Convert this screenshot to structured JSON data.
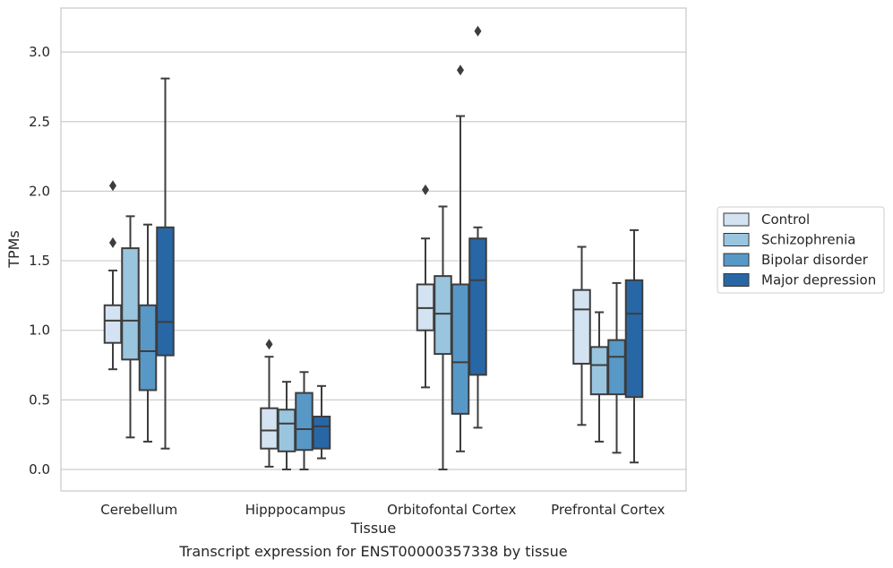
{
  "caption": "Transcript expression for ENST00000357338 by tissue",
  "chart_data": {
    "type": "box",
    "xlabel": "Tissue",
    "ylabel": "TPMs",
    "ylim": [
      -0.15,
      3.3
    ],
    "yticks": [
      0.0,
      0.5,
      1.0,
      1.5,
      2.0,
      2.5,
      3.0
    ],
    "ytick_labels": [
      "0.0",
      "0.5",
      "1.0",
      "1.5",
      "2.0",
      "2.5",
      "3.0"
    ],
    "grid": "horizontal",
    "legend_position": "right",
    "categories": [
      "Cerebellum",
      "Hipppocampus",
      "Orbitofontal Cortex",
      "Prefrontal Cortex"
    ],
    "series": [
      {
        "name": "Control",
        "color": "#d4e3f1",
        "boxes": [
          {
            "whislo": 0.72,
            "q1": 0.91,
            "median": 1.07,
            "q3": 1.18,
            "whishi": 1.43,
            "fliers": [
              1.63,
              2.04
            ]
          },
          {
            "whislo": 0.02,
            "q1": 0.15,
            "median": 0.28,
            "q3": 0.44,
            "whishi": 0.81,
            "fliers": [
              0.9
            ]
          },
          {
            "whislo": 0.59,
            "q1": 1.0,
            "median": 1.16,
            "q3": 1.33,
            "whishi": 1.66,
            "fliers": [
              2.01
            ]
          },
          {
            "whislo": 0.32,
            "q1": 0.76,
            "median": 1.15,
            "q3": 1.29,
            "whishi": 1.6,
            "fliers": []
          }
        ]
      },
      {
        "name": "Schizophrenia",
        "color": "#9ac5df",
        "boxes": [
          {
            "whislo": 0.23,
            "q1": 0.79,
            "median": 1.07,
            "q3": 1.59,
            "whishi": 1.82,
            "fliers": []
          },
          {
            "whislo": 0.0,
            "q1": 0.13,
            "median": 0.33,
            "q3": 0.43,
            "whishi": 0.63,
            "fliers": []
          },
          {
            "whislo": 0.0,
            "q1": 0.83,
            "median": 1.12,
            "q3": 1.39,
            "whishi": 1.89,
            "fliers": []
          },
          {
            "whislo": 0.2,
            "q1": 0.54,
            "median": 0.75,
            "q3": 0.88,
            "whishi": 1.13,
            "fliers": []
          }
        ]
      },
      {
        "name": "Bipolar disorder",
        "color": "#5898c7",
        "boxes": [
          {
            "whislo": 0.2,
            "q1": 0.57,
            "median": 0.85,
            "q3": 1.18,
            "whishi": 1.76,
            "fliers": []
          },
          {
            "whislo": 0.0,
            "q1": 0.14,
            "median": 0.29,
            "q3": 0.55,
            "whishi": 0.7,
            "fliers": []
          },
          {
            "whislo": 0.13,
            "q1": 0.4,
            "median": 0.77,
            "q3": 1.33,
            "whishi": 2.54,
            "fliers": [
              2.87
            ]
          },
          {
            "whislo": 0.12,
            "q1": 0.54,
            "median": 0.81,
            "q3": 0.93,
            "whishi": 1.34,
            "fliers": []
          }
        ]
      },
      {
        "name": "Major depression",
        "color": "#2867a6",
        "boxes": [
          {
            "whislo": 0.15,
            "q1": 0.82,
            "median": 1.06,
            "q3": 1.74,
            "whishi": 2.81,
            "fliers": []
          },
          {
            "whislo": 0.08,
            "q1": 0.15,
            "median": 0.31,
            "q3": 0.38,
            "whishi": 0.6,
            "fliers": []
          },
          {
            "whislo": 0.3,
            "q1": 0.68,
            "median": 1.36,
            "q3": 1.66,
            "whishi": 1.74,
            "fliers": [
              3.15
            ]
          },
          {
            "whislo": 0.05,
            "q1": 0.52,
            "median": 1.12,
            "q3": 1.36,
            "whishi": 1.72,
            "fliers": []
          }
        ]
      }
    ]
  }
}
